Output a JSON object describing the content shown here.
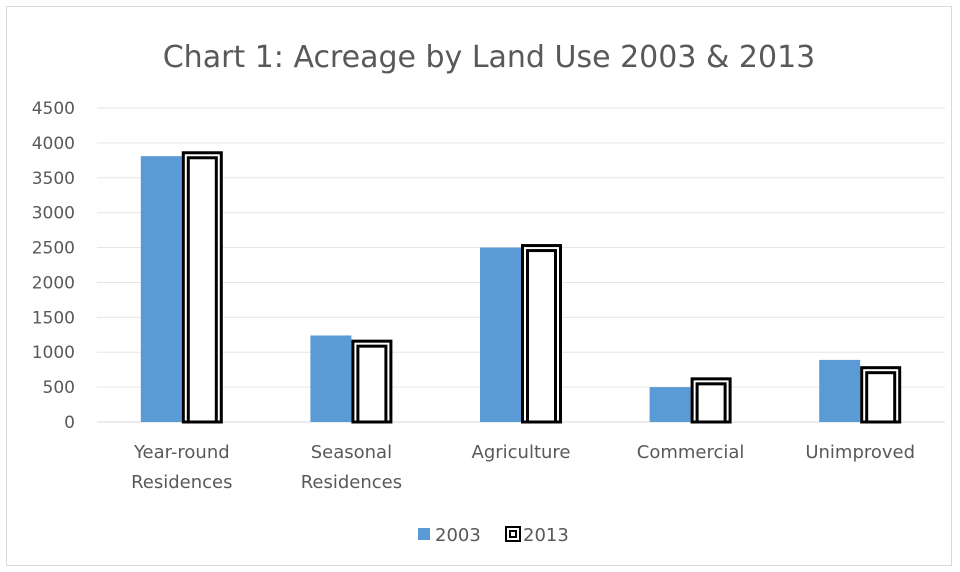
{
  "chart_data": {
    "type": "bar",
    "title": "Chart 1: Acreage by Land Use 2003 & 2013",
    "xlabel": "",
    "ylabel": "",
    "ylim": [
      0,
      4500
    ],
    "yticks": [
      0,
      500,
      1000,
      1500,
      2000,
      2500,
      3000,
      3500,
      4000,
      4500
    ],
    "categories": [
      [
        "Year-round",
        "Residences"
      ],
      [
        "Seasonal",
        "Residences"
      ],
      [
        "Agriculture"
      ],
      [
        "Commercial"
      ],
      [
        "Unimproved"
      ]
    ],
    "series": [
      {
        "name": "2003",
        "values": [
          3810,
          1240,
          2500,
          500,
          890
        ],
        "color": "#5b9bd5",
        "style": "solid"
      },
      {
        "name": "2013",
        "values": [
          3880,
          1180,
          2550,
          640,
          800
        ],
        "color": "#000000",
        "style": "outlined"
      }
    ],
    "grid": true,
    "legend": "bottom-center"
  }
}
